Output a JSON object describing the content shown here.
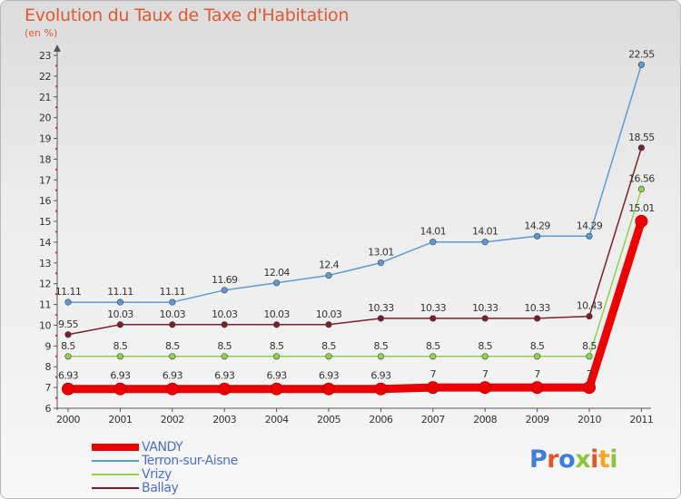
{
  "title": "Evolution du Taux de Taxe d'Habitation",
  "subtitle": "(en %)",
  "logo": {
    "text": "Proxiti",
    "letter_colors": [
      "#3d7fd6",
      "#e2572a",
      "#3d7fd6",
      "#8cc63f",
      "#e2572a",
      "#f2a81d",
      "#8cc63f"
    ]
  },
  "chart_data": {
    "type": "line",
    "title": "Evolution du Taux de Taxe d'Habitation",
    "ylabel": "(en %)",
    "xlabel": "",
    "x": [
      "2000",
      "2001",
      "2002",
      "2003",
      "2004",
      "2005",
      "2006",
      "2007",
      "2008",
      "2009",
      "2010",
      "2011"
    ],
    "ylim": [
      6,
      23
    ],
    "yticks": [
      "6",
      "7",
      "8",
      "9",
      "10",
      "11",
      "12",
      "13",
      "14",
      "15",
      "16",
      "17",
      "18",
      "19",
      "20",
      "21",
      "22",
      "23"
    ],
    "grid": false,
    "legend_position": "bottom-left",
    "series": [
      {
        "name": "Terron-sur-Aisne",
        "color": "#5b9bd5",
        "values": [
          11.11,
          11.11,
          11.11,
          11.69,
          12.04,
          12.4,
          13.01,
          14.01,
          14.01,
          14.29,
          14.29,
          22.55
        ],
        "labels": [
          "11.11",
          "11.11",
          "11.11",
          "11.69",
          "12.04",
          "12.4",
          "13.01",
          "14.01",
          "14.01",
          "14.29",
          "14.29",
          "22.55"
        ]
      },
      {
        "name": "Ballay",
        "color": "#7a1f25",
        "values": [
          9.55,
          10.03,
          10.03,
          10.03,
          10.03,
          10.03,
          10.33,
          10.33,
          10.33,
          10.33,
          10.43,
          18.55
        ],
        "labels": [
          "9.55",
          "10.03",
          "10.03",
          "10.03",
          "10.03",
          "10.03",
          "10.33",
          "10.33",
          "10.33",
          "10.33",
          "10.43",
          "18.55"
        ]
      },
      {
        "name": "Vrizy",
        "color": "#8fd14f",
        "values": [
          8.5,
          8.5,
          8.5,
          8.5,
          8.5,
          8.5,
          8.5,
          8.5,
          8.5,
          8.5,
          8.5,
          16.56
        ],
        "labels": [
          "8.5",
          "8.5",
          "8.5",
          "8.5",
          "8.5",
          "8.5",
          "8.5",
          "8.5",
          "8.5",
          "8.5",
          "8.5",
          "16.56"
        ]
      },
      {
        "name": "VANDY",
        "color": "#ee0000",
        "values": [
          6.93,
          6.93,
          6.93,
          6.93,
          6.93,
          6.93,
          6.93,
          7,
          7,
          7,
          7,
          15.01
        ],
        "labels": [
          "6.93",
          "6.93",
          "6.93",
          "6.93",
          "6.93",
          "6.93",
          "6.93",
          "7",
          "7",
          "7",
          "7",
          "15.01"
        ]
      }
    ],
    "legend": [
      "VANDY",
      "Terron-sur-Aisne",
      "Vrizy",
      "Ballay"
    ]
  }
}
